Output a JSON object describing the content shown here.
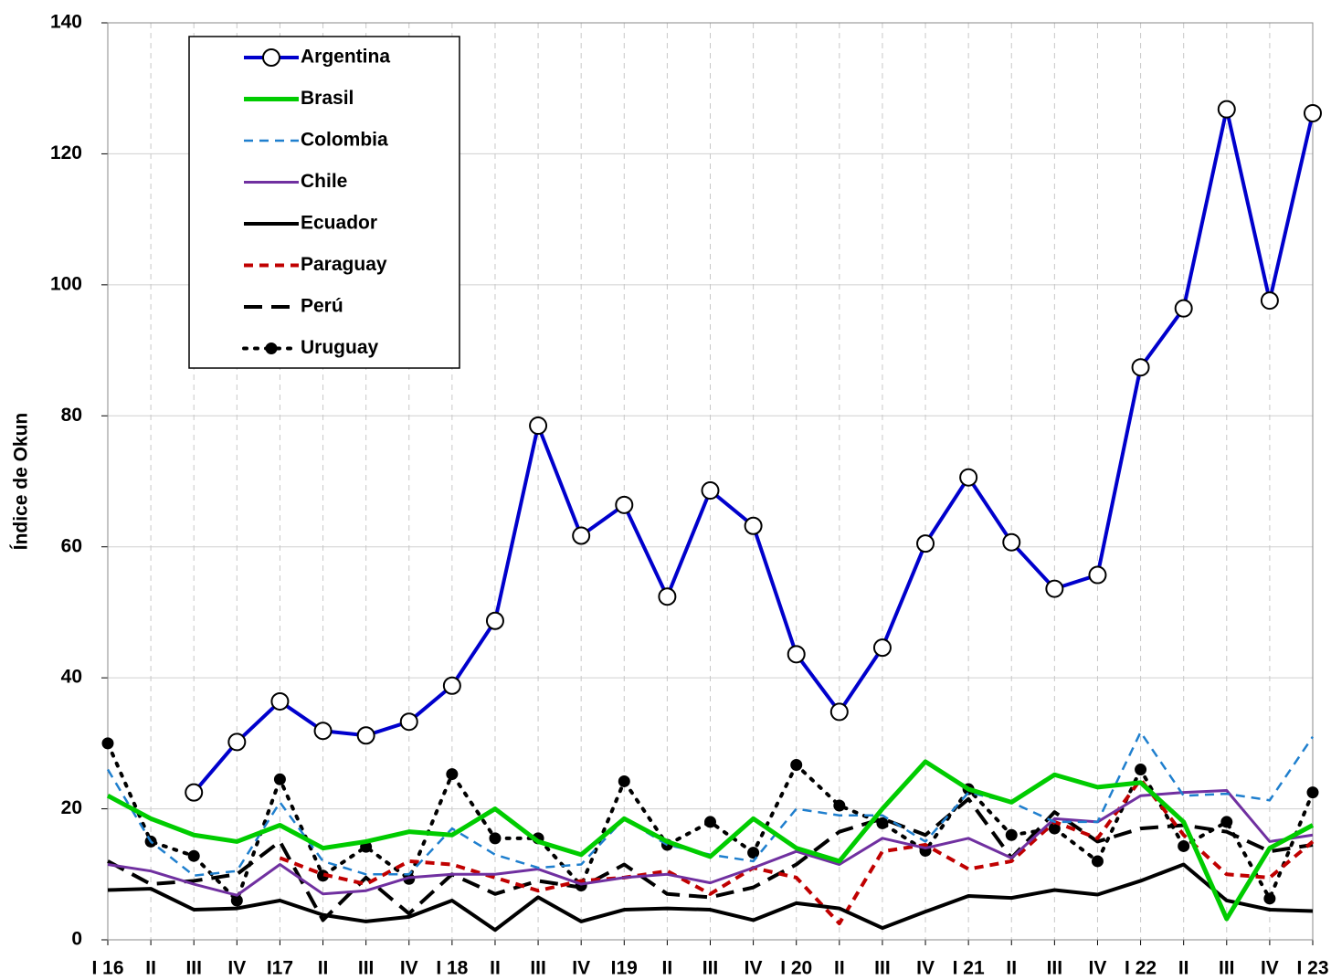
{
  "chart_data": {
    "type": "line",
    "ylabel": "Índice de Okun",
    "categories": [
      "I 16",
      "II",
      "III",
      "IV",
      "I17",
      "II",
      "III",
      "IV",
      "I 18",
      "II",
      "III",
      "IV",
      "I19",
      "II",
      "III",
      "IV",
      "I 20",
      "II",
      "III",
      "IV",
      "I 21",
      "II",
      "III",
      "IV",
      "I 22",
      "II",
      "III",
      "IV",
      "I 23"
    ],
    "ylim": [
      0,
      140
    ],
    "yticks": [
      0,
      20,
      40,
      60,
      80,
      100,
      120,
      140
    ],
    "grid": true,
    "legend": "upper-left",
    "series": [
      {
        "name": "Argentina",
        "color": "#0000cc",
        "width": 4,
        "dash": "solid",
        "marker": "open-circle",
        "values": [
          null,
          null,
          22.5,
          30.2,
          36.4,
          31.9,
          31.2,
          33.3,
          38.8,
          48.7,
          78.5,
          61.7,
          66.4,
          52.4,
          68.6,
          63.2,
          43.6,
          34.8,
          44.6,
          60.5,
          70.6,
          60.7,
          53.6,
          55.7,
          87.4,
          96.4,
          126.8,
          97.6,
          126.2
        ]
      },
      {
        "name": "Brasil",
        "color": "#00cc00",
        "width": 5,
        "dash": "solid",
        "values": [
          22,
          18.5,
          16,
          15,
          17.5,
          14,
          15,
          16.5,
          16,
          20,
          15,
          13,
          18.5,
          15,
          12.7,
          18.5,
          14,
          12,
          20,
          27.2,
          23,
          21,
          25.2,
          23.3,
          24,
          18,
          3.2,
          14,
          17.5
        ]
      },
      {
        "name": "Colombia",
        "color": "#1f7fce",
        "width": 2.5,
        "dash": "dashed",
        "values": [
          26,
          15,
          9.8,
          10.5,
          21,
          12,
          10,
          10,
          17,
          13,
          11,
          11.5,
          18.5,
          14.5,
          13,
          12,
          20,
          19,
          19,
          15,
          22.5,
          21,
          18,
          18,
          31.7,
          22,
          22.3,
          21.3,
          31
        ]
      },
      {
        "name": "Chile",
        "color": "#7030a0",
        "width": 3,
        "dash": "solid",
        "values": [
          11.5,
          10.5,
          8.5,
          6.8,
          11.5,
          7,
          7.5,
          9.5,
          10,
          10,
          10.8,
          8.5,
          9.5,
          10,
          8.7,
          11,
          13.5,
          11.5,
          15.5,
          14,
          15.5,
          12.5,
          18.5,
          18,
          22,
          22.5,
          22.8,
          15,
          16
        ]
      },
      {
        "name": "Ecuador",
        "color": "#000000",
        "width": 4,
        "dash": "solid",
        "values": [
          7.6,
          7.8,
          4.6,
          4.8,
          6,
          3.8,
          2.8,
          3.5,
          6,
          1.5,
          6.5,
          2.8,
          4.6,
          4.8,
          4.6,
          3,
          5.6,
          4.8,
          1.8,
          4.3,
          6.7,
          6.4,
          7.6,
          6.9,
          9,
          11.5,
          6,
          4.6,
          4.4
        ]
      },
      {
        "name": "Paraguay",
        "color": "#c00000",
        "width": 4,
        "dash": "dashed",
        "values": [
          null,
          null,
          null,
          null,
          12.5,
          10,
          8.5,
          12,
          11.5,
          9.5,
          7.5,
          9,
          9.5,
          10.5,
          7,
          11,
          9.5,
          2.5,
          13.5,
          14.5,
          10.8,
          12,
          18,
          15.5,
          24.5,
          16,
          10,
          9.5,
          15
        ]
      },
      {
        "name": "Perú",
        "color": "#000000",
        "width": 4,
        "dash": "long-dashed",
        "values": [
          12,
          8.5,
          9,
          10,
          15,
          3,
          9.5,
          4,
          10,
          7,
          9,
          8,
          11.5,
          7,
          6.5,
          8,
          11.5,
          16.5,
          18.5,
          16,
          21.5,
          12.5,
          19.5,
          15,
          17,
          17.5,
          16.5,
          13.5,
          14.5
        ]
      },
      {
        "name": "Uruguay",
        "color": "#000000",
        "width": 4,
        "dash": "dotted",
        "marker": "filled-circle",
        "values": [
          30,
          15,
          12.8,
          6,
          24.5,
          9.8,
          14.2,
          9.3,
          25.3,
          15.5,
          15.5,
          8.3,
          24.2,
          14.5,
          18,
          13.3,
          26.7,
          20.5,
          17.8,
          13.6,
          23,
          16,
          17,
          12,
          26,
          14.3,
          18,
          6.3,
          22.5
        ]
      }
    ]
  }
}
